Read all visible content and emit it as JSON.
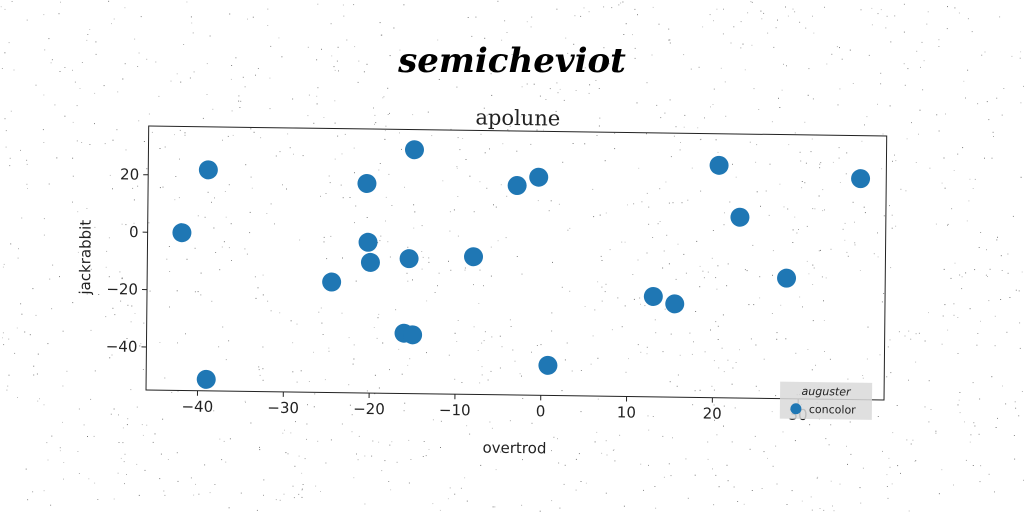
{
  "chart_data": {
    "type": "scatter",
    "title": "semicheviot",
    "subtitle": "apolune",
    "xlabel": "overtrod",
    "ylabel": "jackrabbit",
    "xlim": [
      -46,
      40
    ],
    "ylim": [
      -55,
      37
    ],
    "xticks": [
      -40,
      -30,
      -20,
      -10,
      0,
      10,
      20,
      30
    ],
    "yticks": [
      -40,
      -20,
      0,
      20
    ],
    "grid": false,
    "legend": {
      "title": "auguster",
      "placement": "bottom-right"
    },
    "series": [
      {
        "name": "concolor",
        "color": "#1f77b4",
        "x": [
          -39,
          -20.5,
          -15,
          -3,
          -0.5,
          20.5,
          37,
          -42,
          -20.3,
          -20,
          -15.5,
          -8,
          23,
          -24.5,
          13,
          15.5,
          28.5,
          -16,
          -15,
          0.8,
          -39
        ],
        "y": [
          22,
          18,
          30,
          18,
          21,
          26,
          22,
          0,
          -2.5,
          -9.5,
          -8,
          -7,
          8,
          -16.5,
          -20,
          -22.5,
          -13,
          -34,
          -34.5,
          -44.5,
          -51
        ]
      }
    ]
  }
}
